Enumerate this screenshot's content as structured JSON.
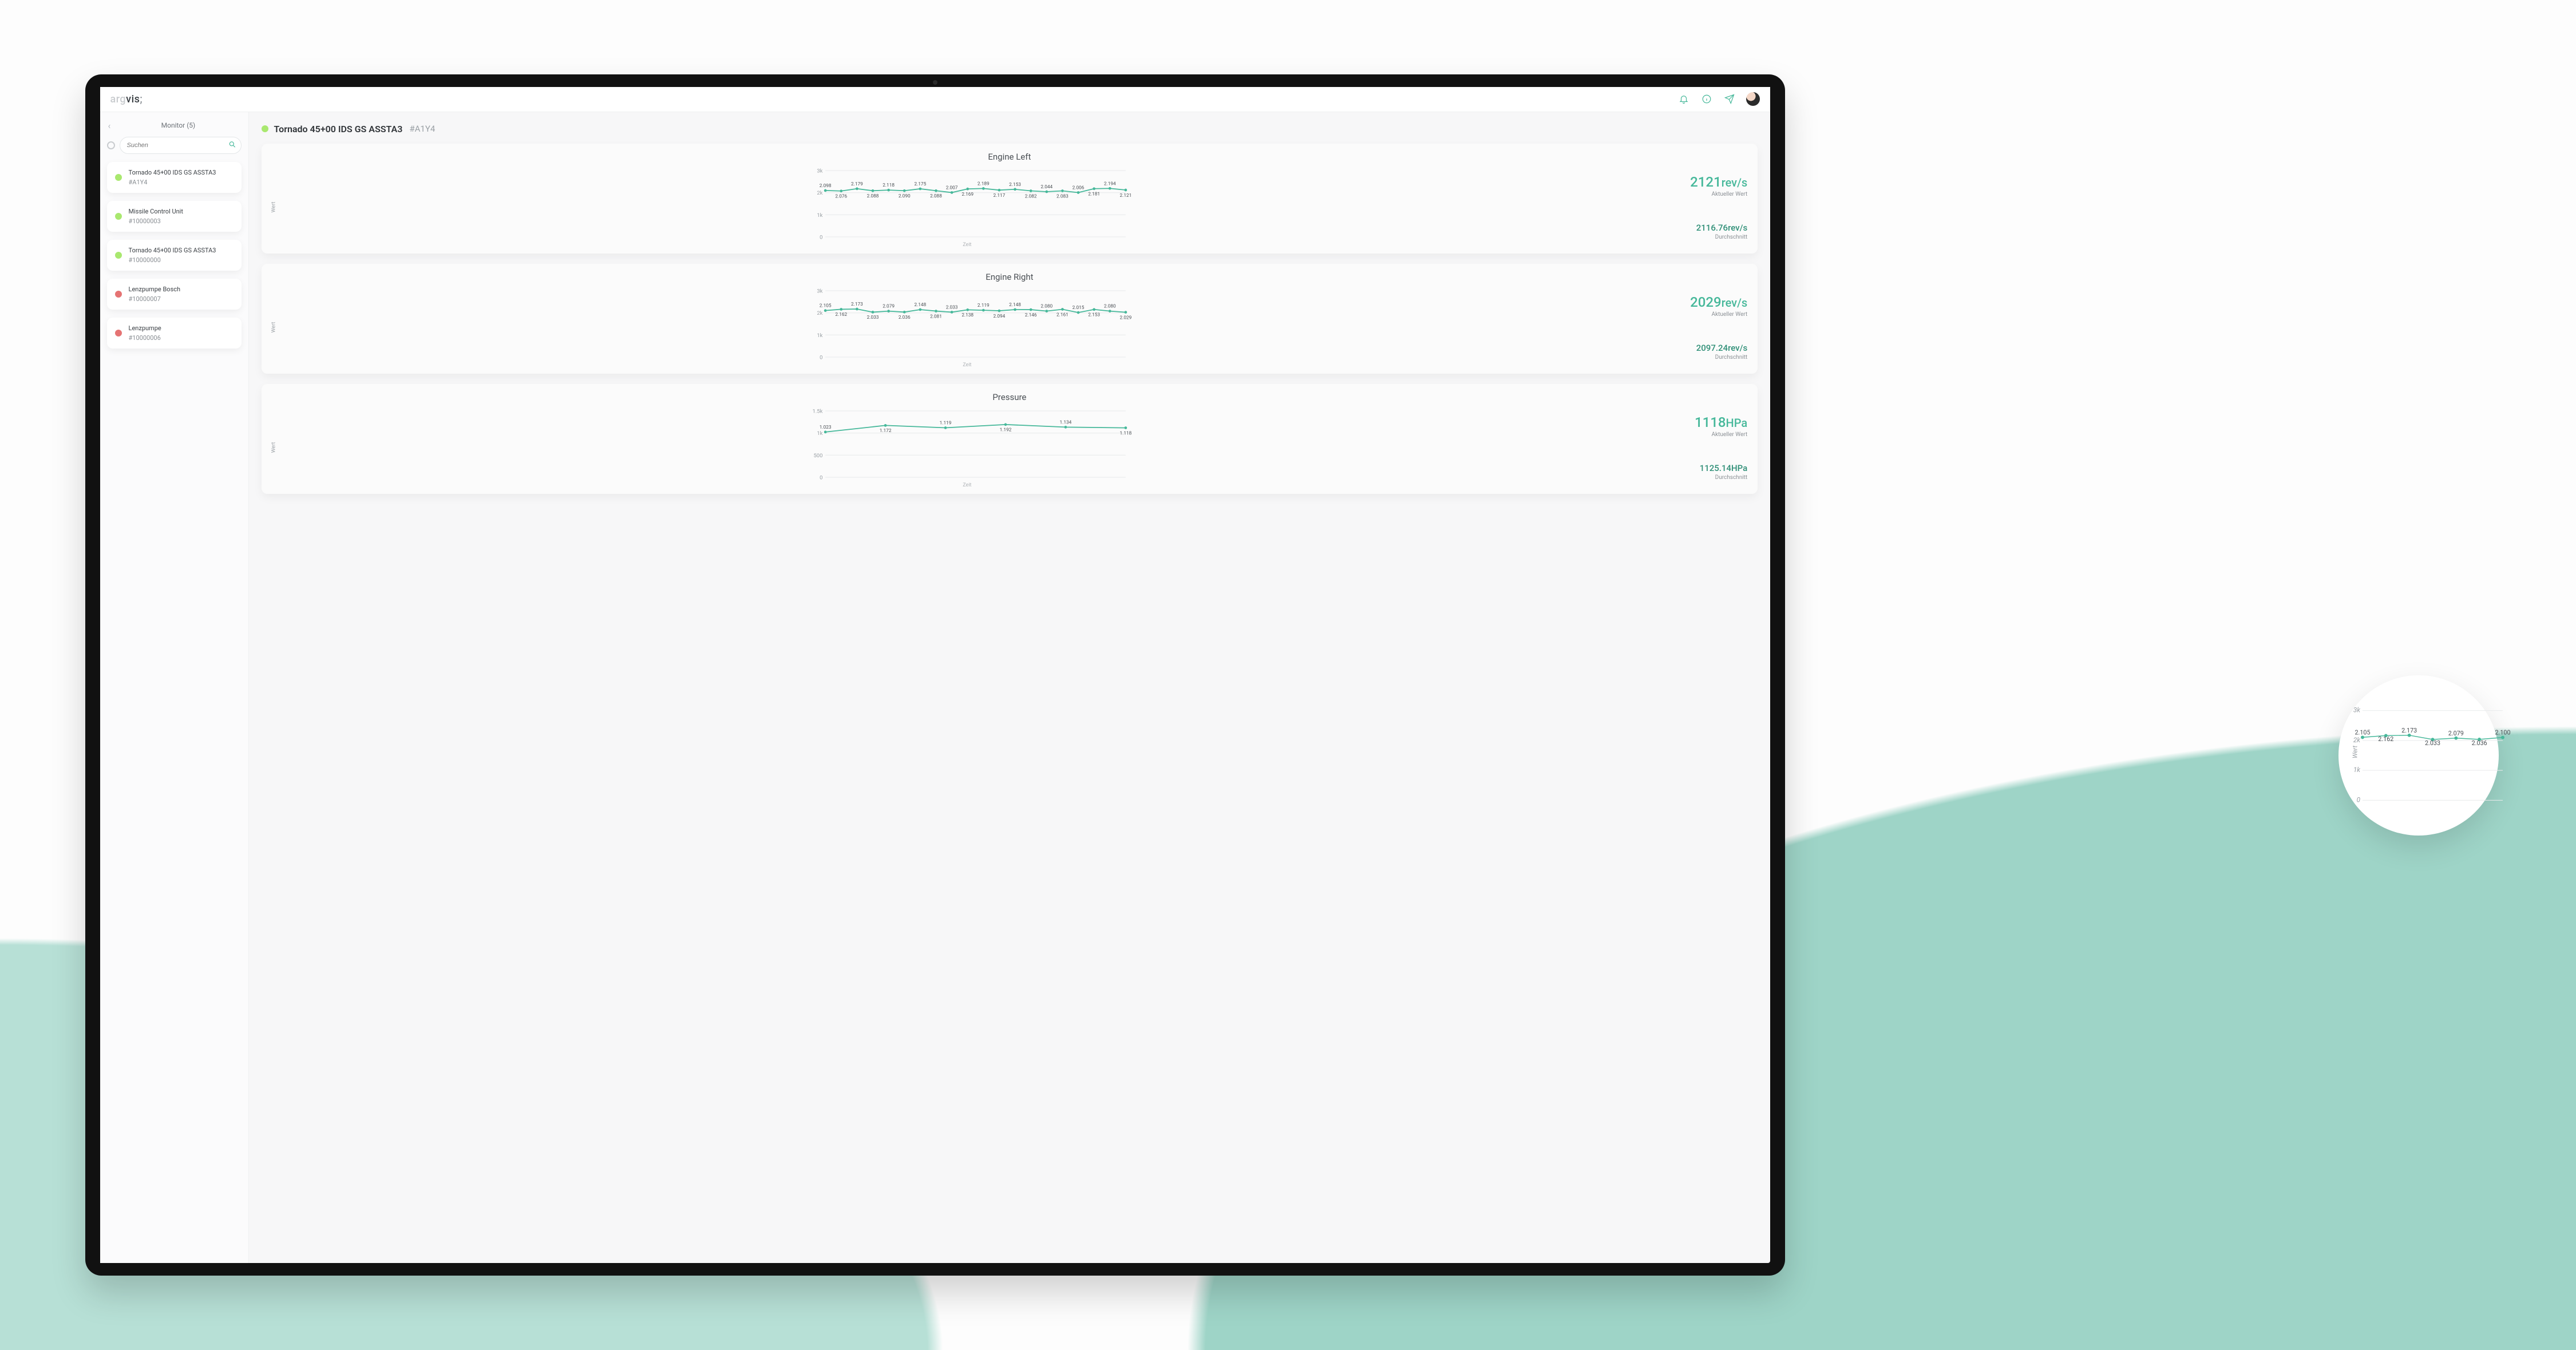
{
  "logo": {
    "part1": "arg",
    "part2": "vis",
    "part3": ";"
  },
  "topbar": {
    "icons": [
      "bell-icon",
      "info-icon",
      "send-icon",
      "avatar"
    ]
  },
  "sidebar": {
    "title": "Monitor (5)",
    "search_placeholder": "Suchen",
    "items": [
      {
        "status": "green",
        "name": "Tornado 45+00 IDS GS ASSTA3",
        "code": "#A1Y4"
      },
      {
        "status": "green",
        "name": "Missile Control Unit",
        "code": "#10000003"
      },
      {
        "status": "green",
        "name": "Tornado 45+00 IDS GS ASSTA3",
        "code": "#10000000"
      },
      {
        "status": "red",
        "name": "Lenzpumpe Bosch",
        "code": "#10000007"
      },
      {
        "status": "red",
        "name": "Lenzpumpe",
        "code": "#10000006"
      }
    ]
  },
  "page": {
    "title": "Tornado 45+00 IDS GS ASSTA3",
    "id": "#A1Y4"
  },
  "labels": {
    "ylabel": "Wert",
    "xlabel": "Zeit",
    "current": "Aktueller Wert",
    "average": "Durchschnitt"
  },
  "colors": {
    "accent": "#46b89a",
    "grid": "#e9ebec",
    "text_muted": "#9aa0a5",
    "status_green": "#a9e86f",
    "status_red": "#e57373",
    "card_bg": "#fbfbfb",
    "screen_bg": "#f7f7f8"
  },
  "charts": [
    {
      "title": "Engine Left",
      "type": "line",
      "ylim": [
        0,
        3000
      ],
      "yticks": [
        0,
        1000,
        2000,
        3000
      ],
      "ytick_labels": [
        "0",
        "1k",
        "2k",
        "3k"
      ],
      "unit": "rev/s",
      "current": "2121",
      "average": "2116.76",
      "values": [
        2.098,
        2.076,
        2.179,
        2.088,
        2.118,
        2.09,
        2.175,
        2.088,
        2.007,
        2.169,
        2.189,
        2.117,
        2.153,
        2.082,
        2.044,
        2.083,
        2.006,
        2.181,
        2.194,
        2.121
      ]
    },
    {
      "title": "Engine Right",
      "type": "line",
      "ylim": [
        0,
        3000
      ],
      "yticks": [
        0,
        1000,
        2000,
        3000
      ],
      "ytick_labels": [
        "0",
        "1k",
        "2k",
        "3k"
      ],
      "unit": "rev/s",
      "current": "2029",
      "average": "2097.24",
      "values": [
        2.105,
        2.162,
        2.173,
        2.033,
        2.079,
        2.036,
        2.148,
        2.081,
        2.033,
        2.138,
        2.119,
        2.094,
        2.148,
        2.146,
        2.08,
        2.161,
        2.015,
        2.153,
        2.08,
        2.029
      ]
    },
    {
      "title": "Pressure",
      "type": "line",
      "ylim": [
        0,
        1500
      ],
      "yticks": [
        0,
        500,
        1000,
        1500
      ],
      "ytick_labels": [
        "0",
        "500",
        "1k",
        "1.5k"
      ],
      "unit": "HPa",
      "current": "1118",
      "average": "1125.14",
      "values": [
        1.023,
        1.172,
        1.119,
        1.192,
        1.134,
        1.118
      ]
    }
  ],
  "bubble": {
    "ylim": [
      0,
      3000
    ],
    "yticks": [
      0,
      1000,
      2000,
      3000
    ],
    "ytick_labels": [
      "0",
      "1k",
      "2k",
      "3k"
    ],
    "ylabel": "Wert",
    "values": [
      2.105,
      2.162,
      2.173,
      2.033,
      2.079,
      2.036,
      2.1
    ]
  }
}
